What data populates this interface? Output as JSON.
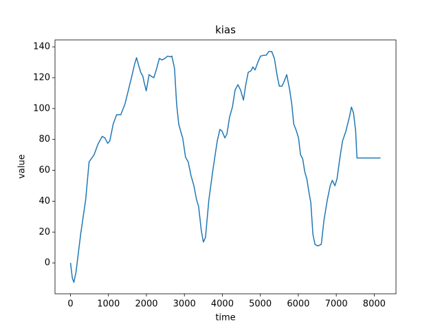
{
  "chart_data": {
    "type": "line",
    "title": "kias",
    "x_label": "time",
    "y_label": "value",
    "x": [
      0,
      50,
      90,
      145,
      270,
      400,
      490,
      620,
      725,
      835,
      905,
      980,
      1035,
      1125,
      1215,
      1325,
      1435,
      1525,
      1615,
      1690,
      1740,
      1795,
      1850,
      1905,
      1940,
      1995,
      2070,
      2120,
      2195,
      2270,
      2340,
      2415,
      2485,
      2560,
      2630,
      2670,
      2740,
      2795,
      2850,
      2905,
      2955,
      3030,
      3100,
      3175,
      3250,
      3320,
      3375,
      3445,
      3500,
      3555,
      3645,
      3755,
      3865,
      3935,
      3990,
      4065,
      4120,
      4190,
      4265,
      4335,
      4410,
      4480,
      4555,
      4610,
      4680,
      4755,
      4805,
      4860,
      4935,
      5005,
      5080,
      5150,
      5225,
      5300,
      5370,
      5445,
      5500,
      5570,
      5625,
      5695,
      5770,
      5825,
      5880,
      5950,
      6005,
      6060,
      6115,
      6170,
      6225,
      6275,
      6330,
      6385,
      6440,
      6515,
      6605,
      6675,
      6765,
      6840,
      6895,
      6965,
      7020,
      7095,
      7165,
      7255,
      7345,
      7400,
      7455,
      7510,
      7545,
      8165
    ],
    "values": [
      0,
      -10,
      -12.5,
      -6,
      19,
      41,
      65.5,
      70,
      77,
      82,
      81,
      77.5,
      79,
      90,
      96,
      96,
      103,
      112,
      121,
      129,
      133,
      128,
      123.5,
      121,
      117,
      111.5,
      122,
      121,
      120,
      126,
      132.5,
      131.5,
      132.5,
      134,
      133.5,
      134,
      126,
      103,
      90,
      85,
      81,
      68.5,
      65.5,
      56.5,
      50,
      41,
      36.5,
      21,
      13.5,
      16.5,
      41,
      61,
      79,
      86.5,
      85.5,
      81,
      83.5,
      94.5,
      101,
      112,
      115.5,
      112,
      105.5,
      114.5,
      123.5,
      124.5,
      127,
      125,
      130,
      134,
      134.5,
      134.5,
      137,
      137,
      132.5,
      121,
      114.5,
      114.5,
      117.5,
      122,
      112.5,
      103.5,
      90,
      85.5,
      81,
      70,
      67.5,
      59,
      54.5,
      46.5,
      39,
      18.5,
      12,
      11,
      12,
      27.5,
      41,
      50,
      53.5,
      50,
      54.5,
      68,
      79,
      85.5,
      94.5,
      101,
      97,
      85.5,
      68,
      68
    ],
    "color": "#1f77b4",
    "xlim": [
      -408,
      8573
    ],
    "xticks": [
      0,
      1000,
      2000,
      3000,
      4000,
      5000,
      6000,
      7000,
      8000
    ],
    "ylim": [
      -20,
      144.5
    ],
    "yticks": [
      0,
      20,
      40,
      60,
      80,
      100,
      120,
      140
    ]
  }
}
